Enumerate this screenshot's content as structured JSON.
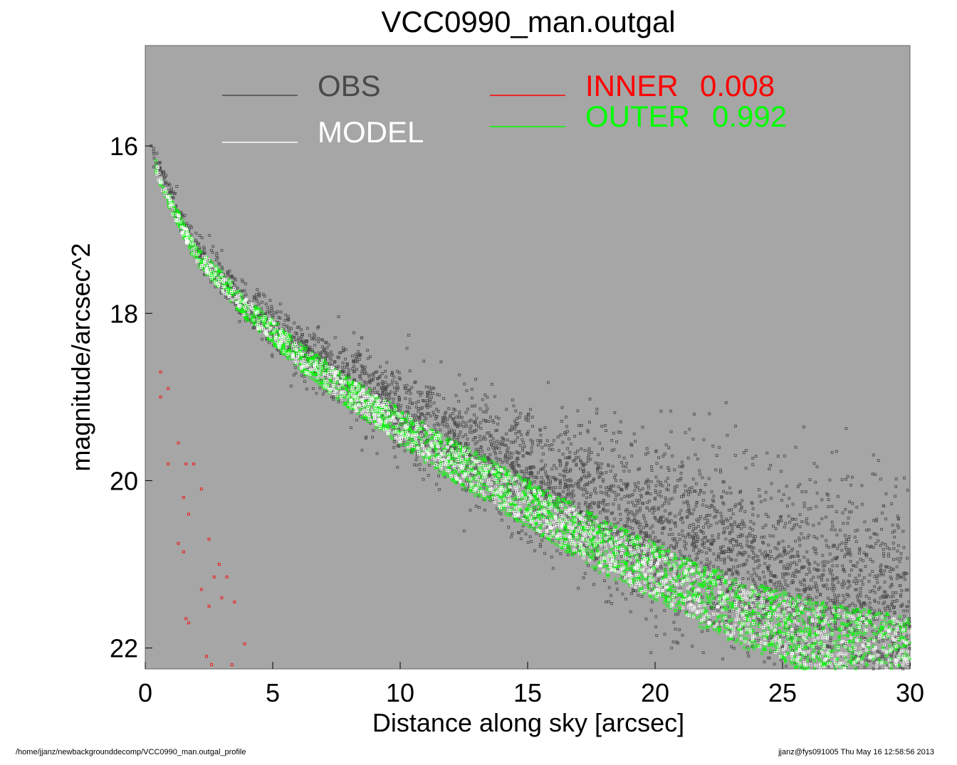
{
  "chart_data": {
    "type": "scatter",
    "title": "VCC0990_man.outgal",
    "xlabel": "Distance along sky [arcsec]",
    "ylabel": "magnitude/arcsec^2",
    "xlim": [
      0,
      30
    ],
    "ylim": [
      22.25,
      14.8
    ],
    "y_inverted": true,
    "xticks": [
      0,
      5,
      10,
      15,
      20,
      25,
      30
    ],
    "yticks": [
      16,
      18,
      20,
      22
    ],
    "grid": false,
    "background": "#a6a6a6",
    "legend_placement": "top",
    "series": [
      {
        "name": "OBS",
        "color": "#4a4a4a",
        "profile_r": [
          0.2,
          1,
          2,
          4,
          6,
          8,
          10,
          12,
          14,
          16,
          18,
          20,
          22,
          24,
          26,
          28,
          30
        ],
        "profile_mag": [
          16.0,
          16.6,
          17.25,
          17.9,
          18.4,
          18.8,
          19.15,
          19.45,
          19.75,
          20.05,
          20.3,
          20.55,
          20.8,
          21.05,
          21.25,
          21.45,
          21.6
        ]
      },
      {
        "name": "MODEL",
        "color": "#ffffff",
        "profile_r": [
          0.2,
          1,
          2,
          4,
          6,
          8,
          10,
          12,
          14,
          16,
          18,
          20,
          22,
          24,
          26,
          28,
          30
        ],
        "profile_mag": [
          16.1,
          16.7,
          17.3,
          17.95,
          18.5,
          18.95,
          19.35,
          19.75,
          20.1,
          20.45,
          20.8,
          21.1,
          21.4,
          21.65,
          21.85,
          22.0,
          22.1
        ]
      },
      {
        "name": "INNER",
        "value": "0.008",
        "color": "#ff0000",
        "points": [
          [
            0.6,
            18.7
          ],
          [
            0.6,
            19.0
          ],
          [
            0.9,
            18.9
          ],
          [
            1.3,
            19.55
          ],
          [
            0.9,
            19.8
          ],
          [
            1.6,
            19.8
          ],
          [
            1.9,
            19.8
          ],
          [
            2.2,
            20.1
          ],
          [
            1.5,
            20.2
          ],
          [
            1.7,
            20.4
          ],
          [
            2.5,
            20.7
          ],
          [
            1.3,
            20.75
          ],
          [
            1.5,
            20.85
          ],
          [
            2.9,
            21.0
          ],
          [
            2.7,
            21.15
          ],
          [
            3.2,
            21.15
          ],
          [
            2.2,
            21.3
          ],
          [
            3.0,
            21.4
          ],
          [
            3.5,
            21.45
          ],
          [
            2.5,
            21.5
          ],
          [
            1.6,
            21.65
          ],
          [
            1.7,
            21.7
          ],
          [
            3.9,
            21.95
          ],
          [
            2.4,
            22.1
          ],
          [
            2.6,
            22.2
          ],
          [
            3.4,
            22.2
          ]
        ]
      },
      {
        "name": "OUTER",
        "value": "0.992",
        "color": "#00ff00",
        "profile_r": [
          0.2,
          1,
          2,
          4,
          6,
          8,
          10,
          12,
          14,
          16,
          18,
          20,
          22,
          24,
          26,
          28,
          30
        ],
        "profile_mag": [
          16.1,
          16.7,
          17.3,
          17.95,
          18.5,
          18.95,
          19.35,
          19.75,
          20.1,
          20.45,
          20.8,
          21.1,
          21.4,
          21.65,
          21.85,
          22.0,
          22.1
        ]
      }
    ]
  },
  "footer": {
    "left": "/home/jjanz/newbackgrounddecomp/VCC0990_man.outgal_profile",
    "right": "jjanz@fys091005  Thu May 16 12:58:56 2013"
  }
}
